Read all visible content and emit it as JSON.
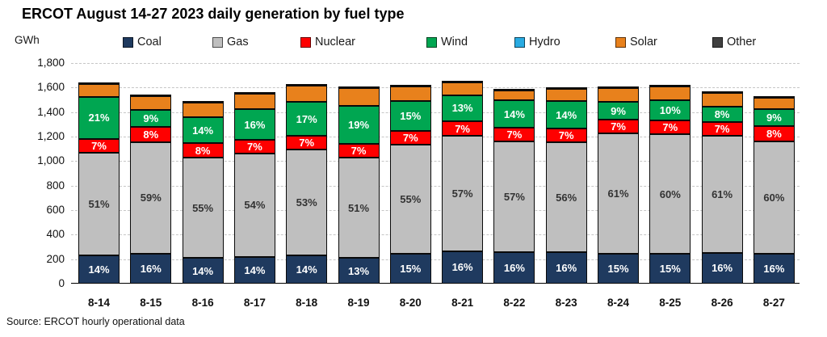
{
  "title": "ERCOT August 14-27 2023 daily generation by fuel type",
  "units_label": "GWh",
  "source_note": "Source: ERCOT hourly operational data",
  "chart_data": {
    "type": "bar",
    "stacked": true,
    "title": "ERCOT August 14-27 2023 daily generation by fuel type",
    "ylabel": "GWh",
    "ylim": [
      0,
      1800
    ],
    "ytick_step": 200,
    "ytick_labels": [
      "0",
      "200",
      "400",
      "600",
      "800",
      "1,000",
      "1,200",
      "1,400",
      "1,600",
      "1,800"
    ],
    "grid": "dashed-horizontal",
    "legend_position": "top",
    "categories": [
      "8-14",
      "8-15",
      "8-16",
      "8-17",
      "8-18",
      "8-19",
      "8-20",
      "8-21",
      "8-22",
      "8-23",
      "8-24",
      "8-25",
      "8-26",
      "8-27"
    ],
    "totals_gwh_estimated": [
      1640,
      1540,
      1490,
      1565,
      1630,
      1610,
      1620,
      1655,
      1590,
      1600,
      1610,
      1625,
      1570,
      1530
    ],
    "series": [
      {
        "name": "Coal",
        "color": "#1f3a5f",
        "labels_shown": true,
        "label_color": "#ffffff",
        "values_pct": [
          14,
          16,
          14,
          14,
          14,
          13,
          15,
          16,
          16,
          16,
          15,
          15,
          16,
          16
        ]
      },
      {
        "name": "Gas",
        "color": "#bfbfbf",
        "labels_shown": true,
        "label_color": "#333333",
        "values_pct": [
          51,
          59,
          55,
          54,
          53,
          51,
          55,
          57,
          57,
          56,
          61,
          60,
          61,
          60
        ]
      },
      {
        "name": "Nuclear",
        "color": "#fe0000",
        "labels_shown": true,
        "label_color": "#ffffff",
        "values_pct": [
          7,
          8,
          8,
          7,
          7,
          7,
          7,
          7,
          7,
          7,
          7,
          7,
          7,
          8
        ]
      },
      {
        "name": "Wind",
        "color": "#00a651",
        "labels_shown": true,
        "label_color": "#ffffff",
        "values_pct": [
          21,
          9,
          14,
          16,
          17,
          19,
          15,
          13,
          14,
          14,
          9,
          10,
          8,
          9
        ]
      },
      {
        "name": "Hydro",
        "color": "#29abe2",
        "labels_shown": false,
        "label_color": "#ffffff",
        "values_pct": [
          0,
          0,
          0,
          0,
          0,
          0,
          0,
          0,
          0,
          0,
          0,
          0,
          0,
          0
        ]
      },
      {
        "name": "Solar",
        "color": "#e8811c",
        "labels_shown": false,
        "label_color": "#ffffff",
        "values_pct": [
          6.2,
          7.2,
          8.2,
          8.2,
          8.2,
          9.2,
          7.2,
          6.2,
          5.2,
          6.2,
          7.2,
          7.2,
          7.2,
          6.2
        ]
      },
      {
        "name": "Other",
        "color": "#404040",
        "labels_shown": false,
        "label_color": "#ffffff",
        "values_pct": [
          0.8,
          0.8,
          0.8,
          0.8,
          0.8,
          0.8,
          0.8,
          0.8,
          0.8,
          0.8,
          0.8,
          0.8,
          0.8,
          0.8
        ]
      }
    ]
  }
}
